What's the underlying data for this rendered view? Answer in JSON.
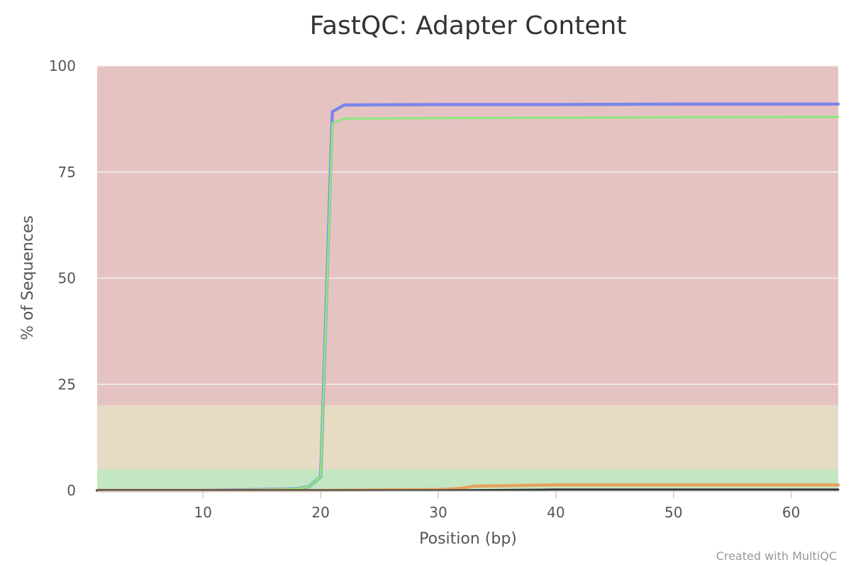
{
  "chart_data": {
    "type": "line",
    "title": "FastQC: Adapter Content",
    "xlabel": "Position (bp)",
    "ylabel": "% of Sequences",
    "xlim": [
      1,
      64
    ],
    "ylim": [
      0,
      100
    ],
    "x_ticks": [
      10,
      20,
      30,
      40,
      50,
      60
    ],
    "y_ticks": [
      0,
      25,
      50,
      75,
      100
    ],
    "grid": true,
    "bands": [
      {
        "from": 0,
        "to": 5,
        "color": "#c3e6c3"
      },
      {
        "from": 5,
        "to": 20,
        "color": "#e6dcc3"
      },
      {
        "from": 20,
        "to": 100,
        "color": "#e6c3c3"
      }
    ],
    "series": [
      {
        "color": "#7b86e8",
        "stroke": 4.5,
        "points": [
          [
            1,
            0
          ],
          [
            10,
            0
          ],
          [
            15,
            0.2
          ],
          [
            18,
            0.4
          ],
          [
            19,
            0.9
          ],
          [
            20,
            3.2
          ],
          [
            21,
            89.2
          ],
          [
            22,
            90.8
          ],
          [
            30,
            90.9
          ],
          [
            40,
            90.9
          ],
          [
            50,
            91.0
          ],
          [
            64,
            91.0
          ]
        ]
      },
      {
        "color": "#8ce87a",
        "stroke": 3,
        "points": [
          [
            1,
            0
          ],
          [
            10,
            0
          ],
          [
            15,
            0.2
          ],
          [
            18,
            0.4
          ],
          [
            19,
            0.9
          ],
          [
            20,
            3.2
          ],
          [
            21,
            86.5
          ],
          [
            22,
            87.6
          ],
          [
            30,
            87.7
          ],
          [
            40,
            87.8
          ],
          [
            50,
            87.9
          ],
          [
            64,
            88.0
          ]
        ]
      },
      {
        "color": "#e8a25f",
        "stroke": 4.5,
        "points": [
          [
            1,
            0
          ],
          [
            20,
            0
          ],
          [
            25,
            0.1
          ],
          [
            30,
            0.2
          ],
          [
            32,
            0.5
          ],
          [
            33,
            1.0
          ],
          [
            40,
            1.3
          ],
          [
            50,
            1.3
          ],
          [
            64,
            1.3
          ]
        ]
      },
      {
        "color": "#333333",
        "stroke": 3,
        "points": [
          [
            1,
            0
          ],
          [
            30,
            0
          ],
          [
            40,
            0.2
          ],
          [
            50,
            0.2
          ],
          [
            64,
            0.2
          ]
        ]
      }
    ]
  },
  "credit": "Created with MultiQC"
}
